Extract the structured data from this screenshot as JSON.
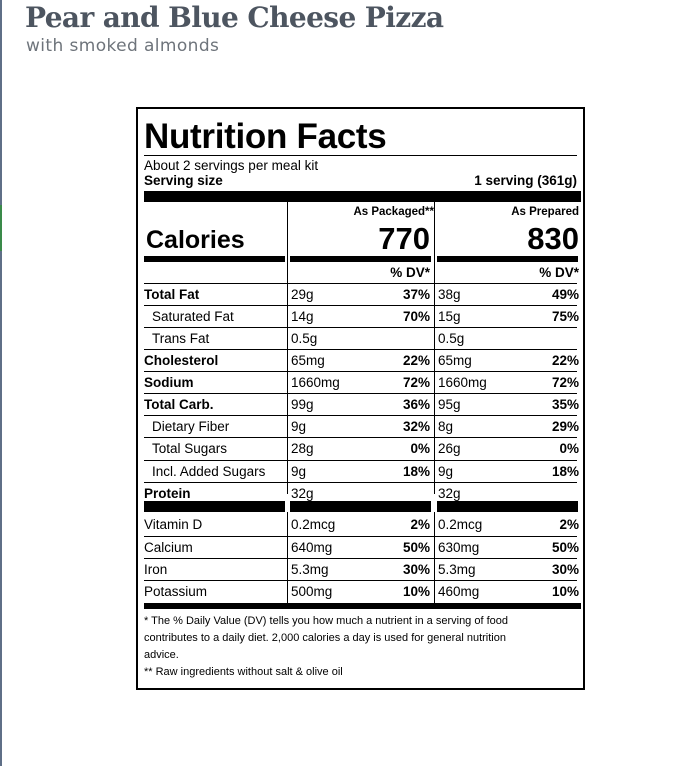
{
  "header": {
    "title": "Pear and Blue Cheese Pizza",
    "subtitle": "with smoked almonds"
  },
  "label": {
    "title": "Nutrition Facts",
    "servings_per_kit": "About 2 servings per meal kit",
    "serving_size_label": "Serving size",
    "serving_size_value": "1 serving (361g)",
    "col1_header": "As Packaged**",
    "col2_header": "As Prepared",
    "calories_label": "Calories",
    "calories_packaged": "770",
    "calories_prepared": "830",
    "dv_header_1": "% DV*",
    "dv_header_2": "% DV*",
    "rows": [
      {
        "name": "Total Fat",
        "packaged": "29g",
        "packaged_dv": "37%",
        "prepared": "38g",
        "prepared_dv": "49%"
      },
      {
        "name": "Saturated Fat",
        "packaged": "14g",
        "packaged_dv": "70%",
        "prepared": "15g",
        "prepared_dv": "75%"
      },
      {
        "name": "Trans Fat",
        "packaged": "0.5g",
        "packaged_dv": "",
        "prepared": "0.5g",
        "prepared_dv": ""
      },
      {
        "name": "Cholesterol",
        "packaged": "65mg",
        "packaged_dv": "22%",
        "prepared": "65mg",
        "prepared_dv": "22%"
      },
      {
        "name": "Sodium",
        "packaged": "1660mg",
        "packaged_dv": "72%",
        "prepared": "1660mg",
        "prepared_dv": "72%"
      },
      {
        "name": "Total Carb.",
        "packaged": "99g",
        "packaged_dv": "36%",
        "prepared": "95g",
        "prepared_dv": "35%"
      },
      {
        "name": "Dietary Fiber",
        "packaged": "9g",
        "packaged_dv": "32%",
        "prepared": "8g",
        "prepared_dv": "29%"
      },
      {
        "name": "Total Sugars",
        "packaged": "28g",
        "packaged_dv": "0%",
        "prepared": "26g",
        "prepared_dv": "0%"
      },
      {
        "name": "Incl. Added Sugars",
        "packaged": "9g",
        "packaged_dv": "18%",
        "prepared": "9g",
        "prepared_dv": "18%"
      },
      {
        "name": "Protein",
        "packaged": "32g",
        "packaged_dv": "",
        "prepared": "32g",
        "prepared_dv": ""
      },
      {
        "name": "Vitamin D",
        "packaged": "0.2mcg",
        "packaged_dv": "2%",
        "prepared": "0.2mcg",
        "prepared_dv": "2%"
      },
      {
        "name": "Calcium",
        "packaged": "640mg",
        "packaged_dv": "50%",
        "prepared": "630mg",
        "prepared_dv": "50%"
      },
      {
        "name": "Iron",
        "packaged": "5.3mg",
        "packaged_dv": "30%",
        "prepared": "5.3mg",
        "prepared_dv": "30%"
      },
      {
        "name": "Potassium",
        "packaged": "500mg",
        "packaged_dv": "10%",
        "prepared": "460mg",
        "prepared_dv": "10%"
      }
    ],
    "footnote_1": "* The % Daily Value (DV) tells you how much a nutrient in a serving of food",
    "footnote_1b": "contributes to a daily diet. 2,000 calories a day is used for general nutrition",
    "footnote_1c": "advice.",
    "footnote_2": "** Raw ingredients without salt & olive oil"
  }
}
